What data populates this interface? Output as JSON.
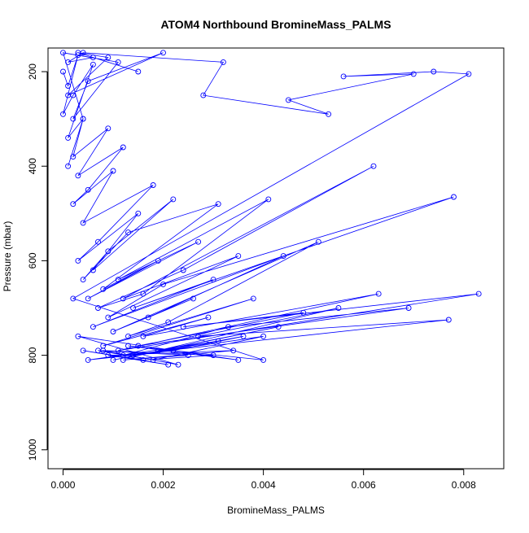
{
  "chart_data": {
    "type": "line",
    "title": "ATOM4 Northbound BromineMass_PALMS",
    "xlabel": "BromineMass_PALMS",
    "ylabel": "Pressure (mbar)",
    "xlim": [
      -0.0003,
      0.0088
    ],
    "ylim": [
      1040,
      150
    ],
    "y_reversed": true,
    "x_ticks": [
      0.0,
      0.002,
      0.004,
      0.006,
      0.008
    ],
    "x_tick_labels": [
      "0.000",
      "0.002",
      "0.004",
      "0.006",
      "0.008"
    ],
    "y_ticks": [
      200,
      400,
      600,
      800,
      1000
    ],
    "y_tick_labels": [
      "200",
      "400",
      "600",
      "800",
      "1000"
    ],
    "grid": false,
    "marker": "open-circle",
    "series_color": "#0000ff",
    "series": [
      {
        "x": [
          0.0,
          0.0001,
          0.0003,
          0.0,
          0.0002,
          0.0006,
          0.0001,
          0.0004,
          0.0002,
          0.0009,
          0.0003,
          0.0012,
          0.0005,
          0.0002,
          0.001,
          0.0004,
          0.0018,
          0.0007,
          0.0003,
          0.0015,
          0.0006,
          0.0022,
          0.0009,
          0.0004,
          0.0013,
          0.0031,
          0.0008,
          0.0019,
          0.0005,
          0.0027,
          0.0011,
          0.0041,
          0.0016,
          0.0007,
          0.0024,
          0.0062,
          0.0012,
          0.0035,
          0.0009,
          0.002,
          0.0078,
          0.0014,
          0.003,
          0.0006,
          0.0044,
          0.0017,
          0.0026,
          0.001,
          0.0051,
          0.0021,
          0.0013,
          0.0038,
          0.0008,
          0.0029,
          0.0016,
          0.0063,
          0.0011,
          0.0083,
          0.0024,
          0.0048,
          0.0015,
          0.0069,
          0.0033,
          0.0012,
          0.0077,
          0.0027,
          0.0055,
          0.0019,
          0.0043,
          0.001,
          0.0036,
          0.0022,
          0.0005,
          0.0031,
          0.0014,
          0.004,
          0.0018,
          0.0007,
          0.0025,
          0.0012,
          0.0034,
          0.0009,
          0.0021,
          0.0004,
          0.0016,
          0.003,
          0.0008,
          0.0023,
          0.0003,
          0.0035,
          0.0013,
          0.004,
          0.0002,
          0.0081,
          0.0074,
          0.0056,
          0.007,
          0.0045,
          0.0053,
          0.0028,
          0.0032,
          0.0004,
          0.0001,
          0.0006,
          0.0015,
          0.0003,
          0.0009,
          0.0001,
          0.002,
          0.0005,
          0.0002,
          0.0011,
          0.0,
          0.0004,
          0.0001
        ],
        "y": [
          200,
          230,
          165,
          290,
          250,
          185,
          340,
          300,
          380,
          320,
          420,
          360,
          450,
          480,
          410,
          520,
          440,
          560,
          600,
          500,
          620,
          470,
          580,
          640,
          540,
          480,
          660,
          600,
          680,
          560,
          640,
          470,
          670,
          700,
          620,
          400,
          680,
          590,
          720,
          650,
          465,
          700,
          640,
          740,
          590,
          720,
          680,
          750,
          560,
          730,
          760,
          680,
          780,
          720,
          760,
          670,
          790,
          670,
          740,
          710,
          780,
          700,
          740,
          800,
          725,
          760,
          700,
          790,
          740,
          810,
          760,
          790,
          810,
          770,
          800,
          760,
          810,
          790,
          800,
          810,
          790,
          800,
          820,
          790,
          810,
          800,
          790,
          820,
          760,
          810,
          780,
          810,
          680,
          205,
          200,
          210,
          205,
          260,
          290,
          250,
          180,
          160,
          180,
          170,
          200,
          160,
          170,
          250,
          160,
          220,
          300,
          180,
          160,
          300,
          400
        ]
      }
    ]
  }
}
